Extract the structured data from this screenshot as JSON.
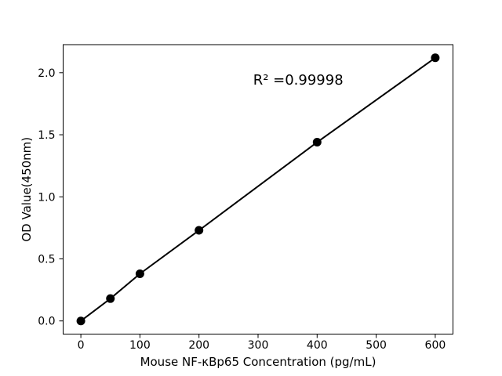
{
  "figure": {
    "background": "#ffffff",
    "foreground": "#000000"
  },
  "chart_data": {
    "type": "line",
    "x": [
      0,
      50,
      100,
      200,
      400,
      600
    ],
    "y": [
      0.0,
      0.18,
      0.38,
      0.73,
      1.44,
      2.12
    ],
    "title": "",
    "xlabel": "Mouse NF-κBp65 Concentration (pg/mL)",
    "ylabel": "OD Value(450nm)",
    "xlim": [
      -30,
      630
    ],
    "ylim": [
      -0.106,
      2.226
    ],
    "xticks": {
      "values": [
        0,
        100,
        200,
        300,
        400,
        500,
        600
      ],
      "labels": [
        "0",
        "100",
        "200",
        "300",
        "400",
        "500",
        "600"
      ]
    },
    "yticks": {
      "values": [
        0.0,
        0.5,
        1.0,
        1.5,
        2.0
      ],
      "labels": [
        "0.0",
        "0.5",
        "1.0",
        "1.5",
        "2.0"
      ]
    },
    "annotation": {
      "text": "R² =0.99998",
      "fx": 0.603,
      "fy": 0.862
    },
    "grid": false,
    "legend": "none",
    "line_color": "#000000",
    "marker": "circle",
    "marker_color": "#000000",
    "marker_radius": 5.5,
    "line_width": 2
  }
}
